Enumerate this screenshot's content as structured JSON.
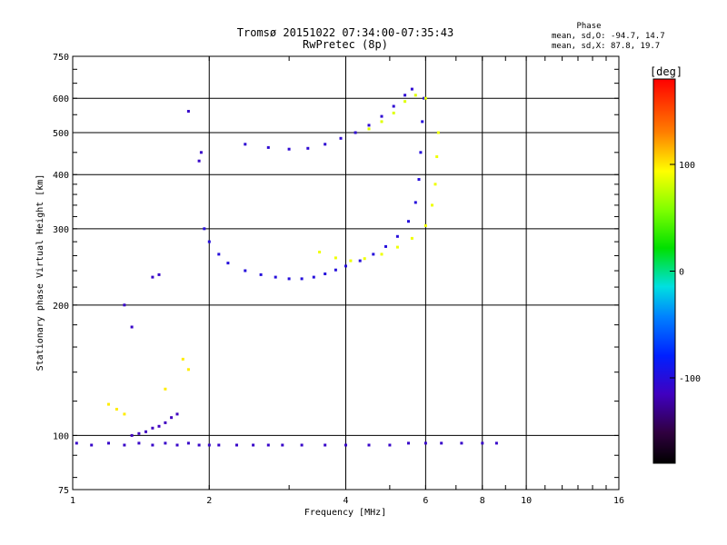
{
  "chart_data": {
    "type": "scatter",
    "title": "Tromsø 20151022 07:34:00-07:35:43",
    "subtitle": "RwPretec (8p)",
    "xlabel": "Frequency [MHz]",
    "ylabel": "Stationary phase Virtual Height [km]",
    "x_scale": "log",
    "y_scale": "log",
    "xlim": [
      1,
      16
    ],
    "ylim": [
      75,
      750
    ],
    "x_ticks": [
      1,
      2,
      4,
      6,
      8,
      10,
      16
    ],
    "x_tick_labels": [
      "1",
      "2",
      "4",
      "6",
      "8",
      "10",
      "16"
    ],
    "y_ticks": [
      75,
      100,
      200,
      300,
      400,
      500,
      600,
      750
    ],
    "y_tick_labels": [
      "75",
      "100",
      "200",
      "300",
      "400",
      "500",
      "600",
      "750"
    ],
    "grid": true,
    "phase_stats": {
      "title": "Phase",
      "o_line": "mean, sd,O: -94.7, 14.7",
      "x_line": "mean, sd,X:  87.8, 19.7"
    },
    "colorbar": {
      "label": "[deg]",
      "range": [
        -180,
        180
      ],
      "ticks": [
        100,
        0,
        -100
      ],
      "tick_labels": [
        "100",
        "0",
        "-100"
      ]
    },
    "traces": [
      {
        "points": [
          [
            1.02,
            96
          ],
          [
            1.1,
            95
          ],
          [
            1.2,
            96
          ],
          [
            1.3,
            95
          ],
          [
            1.4,
            96
          ],
          [
            1.5,
            95
          ],
          [
            1.6,
            96
          ],
          [
            1.7,
            95
          ],
          [
            1.8,
            96
          ],
          [
            1.9,
            95
          ],
          [
            2.0,
            95
          ],
          [
            2.1,
            95
          ],
          [
            2.3,
            95
          ],
          [
            2.5,
            95
          ],
          [
            2.7,
            95
          ],
          [
            2.9,
            95
          ],
          [
            3.2,
            95
          ],
          [
            3.6,
            95
          ],
          [
            4.0,
            95
          ],
          [
            4.5,
            95
          ],
          [
            5.0,
            95
          ],
          [
            5.5,
            96
          ],
          [
            6.0,
            96
          ],
          [
            6.5,
            96
          ],
          [
            7.2,
            96
          ],
          [
            8.0,
            96
          ],
          [
            8.6,
            96
          ]
        ],
        "phase": -110
      },
      {
        "points": [
          [
            1.35,
            100
          ],
          [
            1.4,
            101
          ],
          [
            1.45,
            102
          ],
          [
            1.5,
            104
          ],
          [
            1.55,
            105
          ],
          [
            1.6,
            107
          ],
          [
            1.65,
            110
          ],
          [
            1.7,
            112
          ]
        ],
        "phase": -115
      },
      {
        "points": [
          [
            1.95,
            300
          ],
          [
            2.0,
            280
          ],
          [
            2.1,
            262
          ],
          [
            2.2,
            250
          ],
          [
            2.4,
            240
          ],
          [
            2.6,
            235
          ],
          [
            2.8,
            232
          ],
          [
            3.0,
            230
          ],
          [
            3.2,
            230
          ],
          [
            3.4,
            232
          ],
          [
            3.6,
            236
          ],
          [
            3.8,
            241
          ],
          [
            4.0,
            246
          ],
          [
            4.3,
            253
          ],
          [
            4.6,
            262
          ],
          [
            4.9,
            273
          ],
          [
            5.2,
            288
          ],
          [
            5.5,
            312
          ],
          [
            5.7,
            345
          ],
          [
            5.8,
            390
          ],
          [
            5.85,
            450
          ],
          [
            5.9,
            530
          ],
          [
            5.95,
            600
          ]
        ],
        "phase": -100
      },
      {
        "points": [
          [
            3.5,
            265
          ],
          [
            3.8,
            257
          ],
          [
            4.1,
            253
          ],
          [
            4.4,
            256
          ],
          [
            4.8,
            262
          ],
          [
            5.2,
            272
          ],
          [
            5.6,
            285
          ],
          [
            6.0,
            305
          ],
          [
            6.2,
            340
          ],
          [
            6.3,
            380
          ],
          [
            6.35,
            440
          ],
          [
            6.4,
            500
          ]
        ],
        "phase": 90
      },
      {
        "points": [
          [
            2.4,
            470
          ],
          [
            2.7,
            462
          ],
          [
            3.0,
            458
          ],
          [
            3.3,
            460
          ],
          [
            3.6,
            470
          ],
          [
            3.9,
            485
          ],
          [
            4.2,
            500
          ],
          [
            4.5,
            520
          ],
          [
            4.8,
            545
          ],
          [
            5.1,
            575
          ],
          [
            5.4,
            610
          ],
          [
            5.6,
            630
          ]
        ],
        "phase": -105
      },
      {
        "points": [
          [
            4.5,
            510
          ],
          [
            4.8,
            530
          ],
          [
            5.1,
            555
          ],
          [
            5.4,
            590
          ],
          [
            5.7,
            610
          ],
          [
            6.0,
            600
          ]
        ],
        "phase": 85
      },
      {
        "points": [
          [
            1.3,
            200
          ],
          [
            1.35,
            178
          ],
          [
            1.5,
            232
          ],
          [
            1.55,
            235
          ],
          [
            1.8,
            560
          ],
          [
            1.9,
            430
          ],
          [
            1.92,
            450
          ]
        ],
        "phase": -110
      },
      {
        "points": [
          [
            1.2,
            118
          ],
          [
            1.25,
            115
          ],
          [
            1.3,
            112
          ],
          [
            1.6,
            128
          ],
          [
            1.75,
            150
          ],
          [
            1.8,
            142
          ]
        ],
        "phase": 100
      }
    ]
  }
}
